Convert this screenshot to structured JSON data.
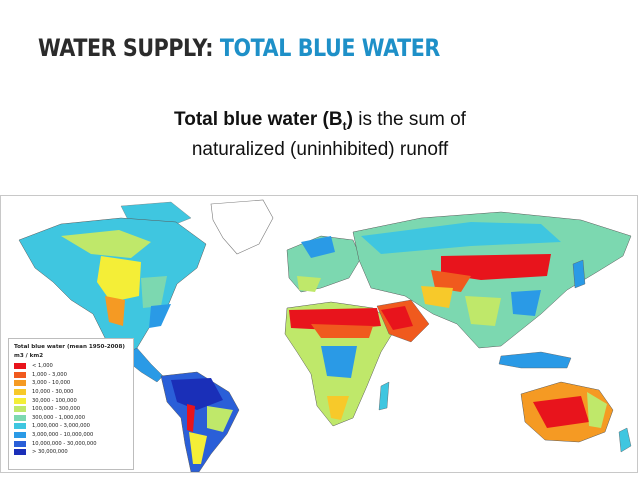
{
  "slide": {
    "title_main": "WATER SUPPLY: ",
    "title_accent": "TOTAL BLUE WATER",
    "subtitle_bold": "Total blue water (B",
    "subtitle_sub": "t",
    "subtitle_close": ")",
    "subtitle_line1_rest": " is the sum of",
    "subtitle_line2": "naturalized (uninhibited) runoff"
  },
  "colors": {
    "title_accent": "#1e90c8",
    "ocean": "#ffffff"
  },
  "legend": {
    "title": "Total blue water (mean 1950-2008)",
    "unit": "m3 / km2",
    "items": [
      {
        "label": "< 1,000",
        "color": "#e8141c"
      },
      {
        "label": "1,000 - 3,000",
        "color": "#f05a1e"
      },
      {
        "label": "3,000 - 10,000",
        "color": "#f59a23"
      },
      {
        "label": "10,000 - 30,000",
        "color": "#f7c92a"
      },
      {
        "label": "30,000 - 100,000",
        "color": "#f4ee37"
      },
      {
        "label": "100,000 - 300,000",
        "color": "#bfe86a"
      },
      {
        "label": "300,000 - 1,000,000",
        "color": "#7cd8b0"
      },
      {
        "label": "1,000,000 - 3,000,000",
        "color": "#3fc6e0"
      },
      {
        "label": "3,000,000 - 10,000,000",
        "color": "#2a9ae6"
      },
      {
        "label": "10,000,000 - 30,000,000",
        "color": "#2a5fd8"
      },
      {
        "label": "> 30,000,000",
        "color": "#1a2fb8"
      }
    ]
  }
}
